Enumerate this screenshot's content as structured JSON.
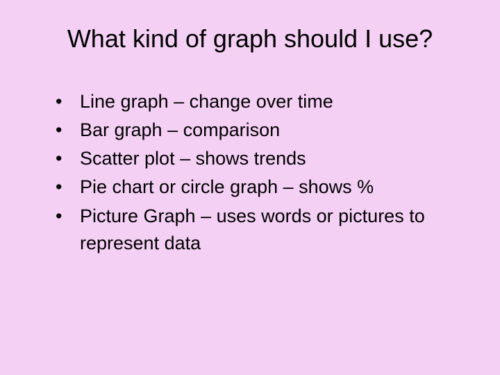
{
  "slide": {
    "background_color": "#f5d0f5",
    "text_color": "#000000",
    "title": "What kind of graph should I use?",
    "title_fontsize": 36,
    "body_fontsize": 27,
    "bullet_marker": "•",
    "bullets": [
      "Line graph – change over time",
      "Bar graph – comparison",
      "Scatter plot – shows trends",
      "Pie chart or circle graph – shows %",
      "Picture Graph – uses words or pictures to represent data"
    ]
  }
}
